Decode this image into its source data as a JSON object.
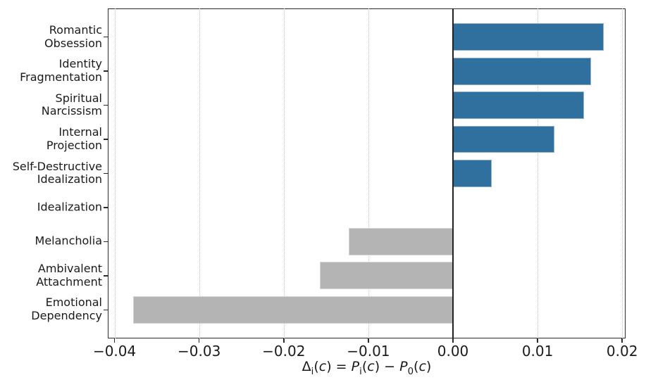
{
  "chart_data": {
    "type": "bar",
    "orientation": "horizontal",
    "title": "",
    "xlabel": "Δ_i(c) = P_i(c) − P_0(c)",
    "ylabel": "",
    "categories": [
      "Romantic\nObsession",
      "Identity\nFragmentation",
      "Spiritual\nNarcissism",
      "Internal\nProjection",
      "Self-Destructive\nIdealization",
      "Idealization",
      "Melancholia",
      "Ambivalent\nAttachment",
      "Emotional\nDependency"
    ],
    "values": [
      0.0178,
      0.0163,
      0.0155,
      0.012,
      0.0046,
      0.0,
      -0.0123,
      -0.0157,
      -0.0378
    ],
    "xlim": [
      -0.0408,
      0.0204
    ],
    "x_ticks": [
      -0.04,
      -0.03,
      -0.02,
      -0.01,
      0.0,
      0.01,
      0.02
    ],
    "x_tick_labels": [
      "−0.04",
      "−0.03",
      "−0.02",
      "−0.01",
      "0.00",
      "0.01",
      "0.02"
    ],
    "grid": "vertical-dotted",
    "zero_line": true,
    "legend": "none",
    "colors": {
      "positive_bar": "#2f709f",
      "negative_bar": "#b4b4b4",
      "gridline": "#c4c4c4",
      "spine": "#2b2b2b",
      "zero_line": "#222222",
      "text": "#1a1a1a"
    }
  }
}
